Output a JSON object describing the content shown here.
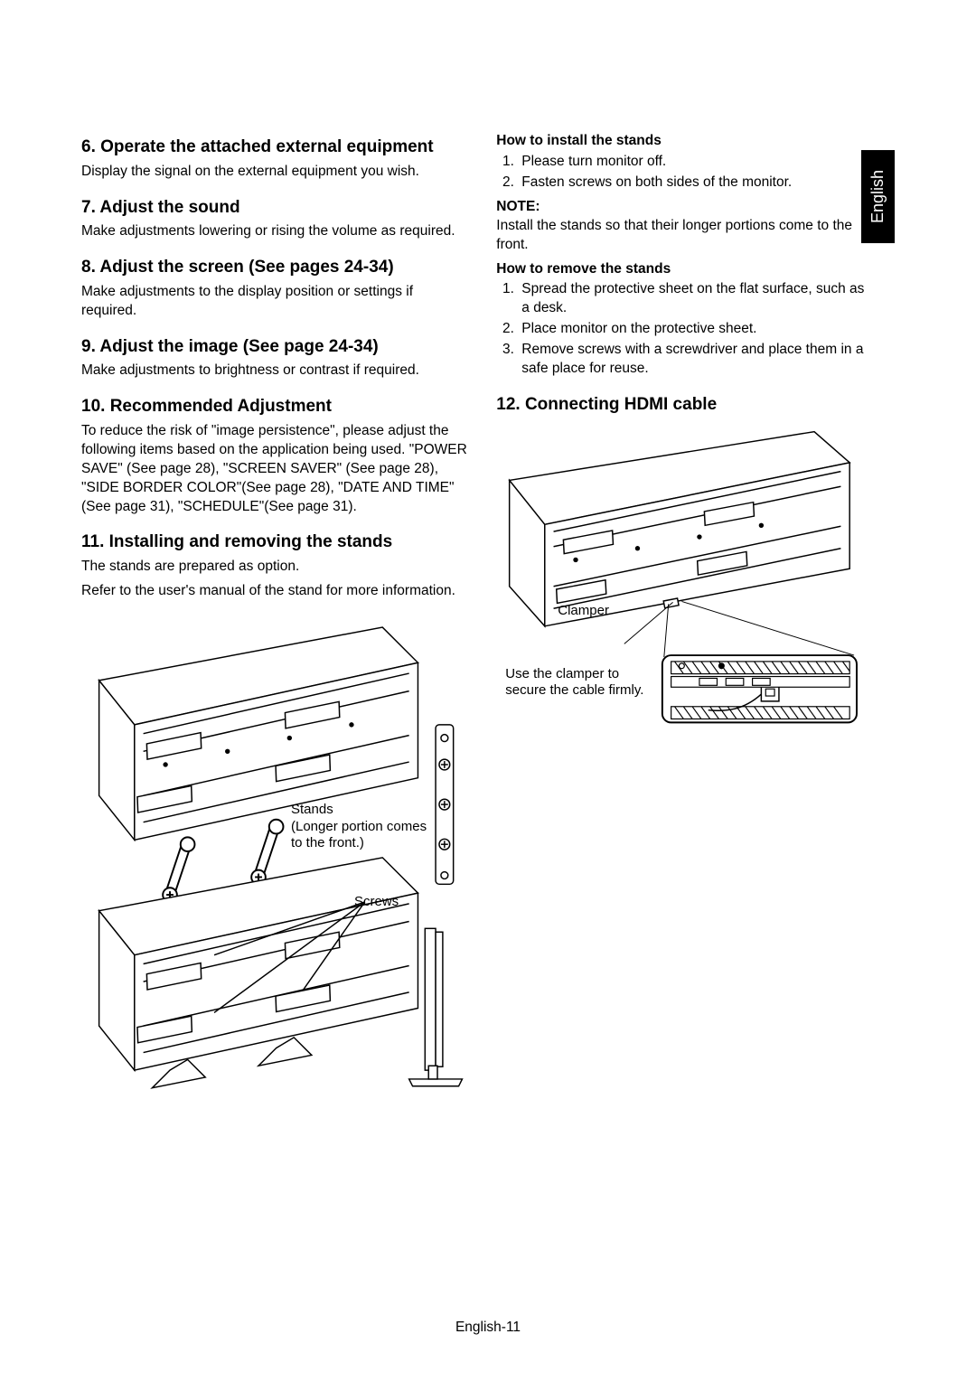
{
  "lang_tab": "English",
  "footer": "English-11",
  "left": {
    "s6": {
      "title": "6. Operate the attached external equipment",
      "body": "Display the signal on the external equipment you wish."
    },
    "s7": {
      "title": "7. Adjust the sound",
      "body": "Make adjustments lowering or rising the volume as required."
    },
    "s8": {
      "title": "8. Adjust the screen (See pages 24-34)",
      "body": "Make adjustments to the display position or settings if required."
    },
    "s9": {
      "title": "9. Adjust the image (See page 24-34)",
      "body": "Make adjustments to brightness or contrast if required."
    },
    "s10": {
      "title": "10. Recommended Adjustment",
      "body": "To reduce the risk of \"image persistence\", please adjust the following items based on the application being used. \"POWER SAVE\" (See page 28), \"SCREEN SAVER\" (See page 28), \"SIDE BORDER COLOR\"(See page 28), \"DATE AND TIME\" (See page 31), \"SCHEDULE\"(See page 31)."
    },
    "s11": {
      "title": "11. Installing and removing the stands",
      "body1": "The stands are prepared as option.",
      "body2": "Refer to the user's manual of the stand for more information.",
      "fig_stands_label": "Stands\n(Longer portion comes to the front.)",
      "fig_screws_label": "Screws"
    }
  },
  "right": {
    "install_head": "How to install the stands",
    "install_steps": [
      "Please turn monitor off.",
      "Fasten screws on both sides of the monitor."
    ],
    "note_head": "NOTE:",
    "note_body": "Install the stands so that their longer portions come to the front.",
    "remove_head": "How to remove the stands",
    "remove_steps": [
      "Spread the protective sheet on the flat surface, such as a desk.",
      "Place monitor on the protective sheet.",
      "Remove screws with a screwdriver and place them in a safe place for reuse."
    ],
    "s12": {
      "title": "12. Connecting HDMI cable",
      "clamper_label": "Clamper",
      "clamper_note": "Use the clamper to secure the cable firmly."
    }
  },
  "style": {
    "text_color": "#000000",
    "bg_color": "#ffffff",
    "tab_bg": "#000000",
    "tab_fg": "#ffffff",
    "stroke": "#000000"
  }
}
